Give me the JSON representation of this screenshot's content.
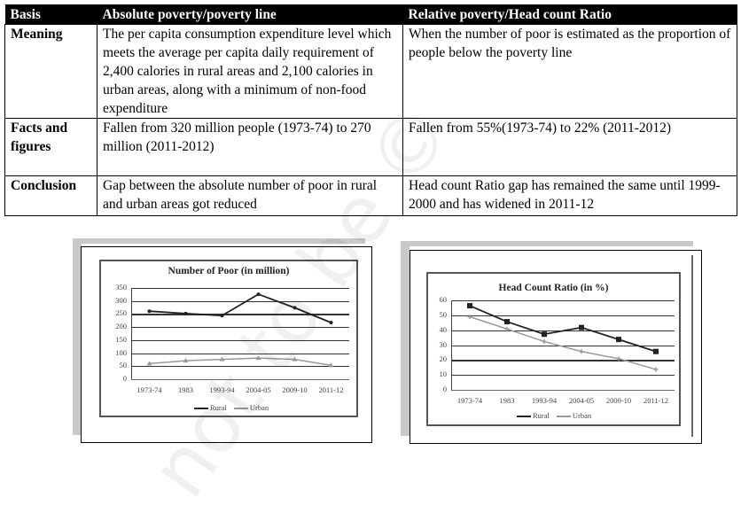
{
  "table": {
    "headers": [
      "Basis",
      "Absolute poverty/poverty  line",
      "Relative poverty/Head count Ratio"
    ],
    "rows": [
      {
        "basis": "Meaning",
        "absolute": "The per capita consumption expenditure level which meets the average per capita daily requirement of 2,400 calories in rural areas and 2,100 calories in urban areas, along with a minimum of non-food expenditure",
        "relative": "When the number of poor is estimated as the proportion of people below the poverty line"
      },
      {
        "basis": "Facts and figures",
        "absolute": "Fallen from 320 million people (1973-74) to 270 million (2011-2012)",
        "relative": "Fallen from 55%(1973-74)  to 22% (2011-2012)"
      },
      {
        "basis": "Conclusion",
        "absolute": "Gap between the absolute number of poor in rural and urban areas got reduced",
        "relative": "Head count Ratio gap has remained the same until 1999-2000 and has widened in 2011-12"
      }
    ]
  },
  "watermark": "not to be ©",
  "chart_data": [
    {
      "type": "line",
      "title": "Number of Poor (in million)",
      "xlabel": "",
      "ylabel": "",
      "categories": [
        "1973-74",
        "1983",
        "1993-94",
        "2004-05",
        "2009-10",
        "2011-12"
      ],
      "series": [
        {
          "name": "Rural",
          "values": [
            261,
            252,
            244,
            326,
            274,
            217
          ],
          "color": "#222222",
          "marker": "dot"
        },
        {
          "name": "Urban",
          "values": [
            60,
            71,
            76,
            81,
            76,
            53
          ],
          "color": "#999999",
          "marker": "triangle"
        }
      ],
      "yticks": [
        "0",
        "50",
        "100",
        "150",
        "200",
        "250",
        "300",
        "350"
      ],
      "ylim": [
        0,
        350
      ],
      "grid": true,
      "legend_position": "bottom"
    },
    {
      "type": "line",
      "title": "Head Count Ratio (in %)",
      "xlabel": "",
      "ylabel": "",
      "categories": [
        "1973-74",
        "1983",
        "1993-94",
        "2004-05",
        "2009-10",
        "2011-12"
      ],
      "series": [
        {
          "name": "Rural",
          "values": [
            56.4,
            45.7,
            37.3,
            41.8,
            33.8,
            25.7
          ],
          "color": "#222222",
          "marker": "square"
        },
        {
          "name": "Urban",
          "values": [
            49.0,
            40.8,
            32.4,
            25.7,
            20.9,
            13.7
          ],
          "color": "#999999",
          "marker": "plus"
        }
      ],
      "yticks": [
        "0",
        "10",
        "20",
        "30",
        "40",
        "50",
        "60"
      ],
      "ylim": [
        0,
        60
      ],
      "grid": true,
      "legend_position": "bottom"
    }
  ]
}
